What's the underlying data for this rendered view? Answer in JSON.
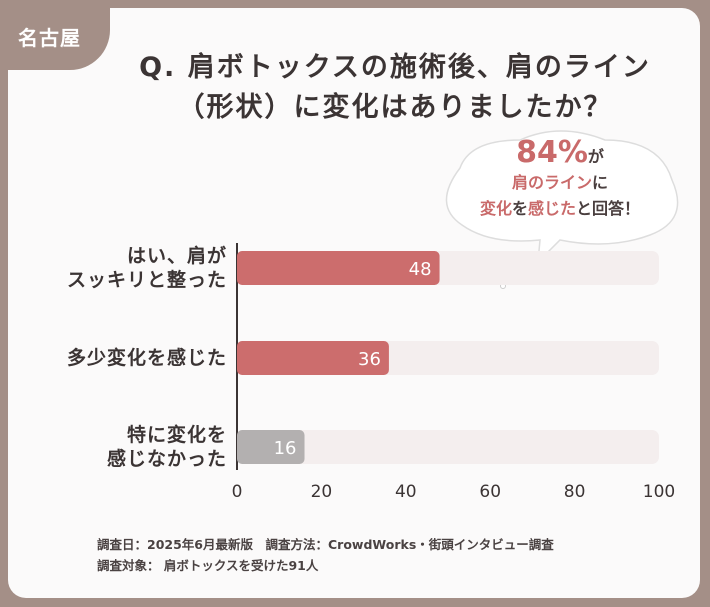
{
  "chart_data": {
    "type": "bar",
    "tag": "名古屋",
    "title": "Q. 肩ボトックスの施術後、肩のライン\n（形状）に変化はありましたか？",
    "annotation": [
      [
        {
          "text": "84%",
          "color": "#c96a6a"
        },
        {
          "text": "が",
          "color": "#4a3f3f"
        }
      ],
      [
        {
          "text": "肩のライン",
          "color": "#c96a6a"
        },
        {
          "text": "に",
          "color": "#4a3f3f"
        }
      ],
      [
        {
          "text": "変化",
          "color": "#c96a6a"
        },
        {
          "text": "を",
          "color": "#4a3f3f"
        },
        {
          "text": "感じた",
          "color": "#c96a6a"
        },
        {
          "text": "と回答！",
          "color": "#4a3f3f"
        }
      ]
    ],
    "categories": [
      "はい、肩が\nスッキリと整った",
      "多少変化を感じた",
      "特に変化を\n感じなかった"
    ],
    "values": [
      48,
      36,
      16
    ],
    "colors": [
      "#cc6d6d",
      "#cc6d6d",
      "#b3b0b0"
    ],
    "track_color": "#f4eeee",
    "xlim": [
      0,
      100
    ],
    "xticks": [
      0,
      20,
      40,
      60,
      80,
      100
    ],
    "footnotes": [
      "調査日：2025年6月最新版　調査方法：CrowdWorks・街頭インタビュー調査",
      "調査対象： 肩ボトックスを受けた91人"
    ]
  }
}
